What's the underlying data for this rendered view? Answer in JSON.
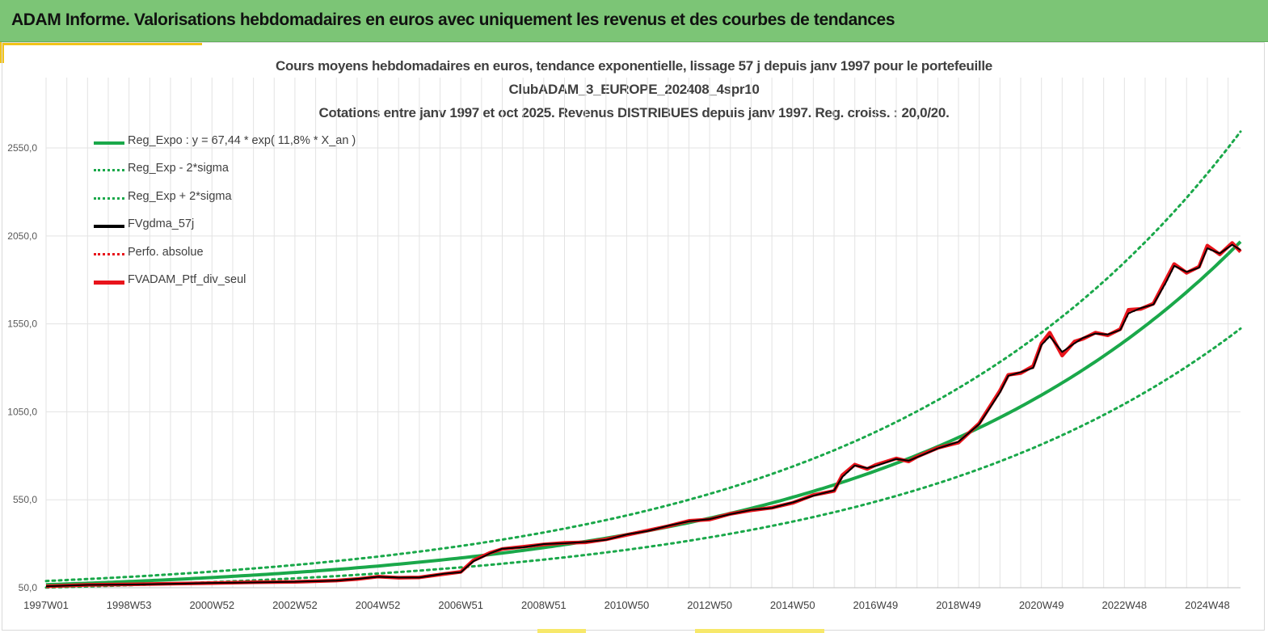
{
  "banner": {
    "title": "ADAM Informe. Valorisations hebdomadaires en euros avec uniquement les revenus et des courbes de tendances"
  },
  "colors": {
    "banner_bg": "#7cc576",
    "accent": "#f2c318",
    "trend": "#1aa84a",
    "trend_band": "#1aa84a",
    "fvgdma": "#000000",
    "perfo": "#e8141b",
    "portfolio": "#e8141b",
    "grid": "#e3e3e3"
  },
  "chart_data": {
    "type": "line",
    "title_lines": [
      "Cours moyens hebdomadaires  en euros, tendance exponentielle, lissage 57 j depuis janv 1997 pour le portefeuille",
      "ClubADAM_3_EUROPE_202408_4spr10",
      "Cotations  entre janv 1997 et oct 2025. Revenus DISTRIBUES depuis janv 1997. Reg. croiss. : 20,0/20."
    ],
    "xlabel": "",
    "ylabel": "",
    "ylim": [
      50,
      2950
    ],
    "xlim": [
      1997.0,
      2025.8
    ],
    "yticks": [
      50,
      550,
      1050,
      1550,
      2050,
      2550
    ],
    "ytick_labels": [
      "50,0",
      "550,0",
      "1050,0",
      "1550,0",
      "2050,0",
      "2550,0"
    ],
    "xticks": [
      1997.0,
      1999.0,
      2001.0,
      2003.0,
      2005.0,
      2007.0,
      2009.0,
      2011.0,
      2013.0,
      2015.0,
      2017.0,
      2019.0,
      2021.0,
      2023.0,
      2025.0
    ],
    "xtick_labels": [
      "1997W01",
      "1998W53",
      "2000W52",
      "2002W52",
      "2004W52",
      "2006W51",
      "2008W51",
      "2010W50",
      "2012W50",
      "2014W50",
      "2016W49",
      "2018W49",
      "2020W49",
      "2022W48",
      "2024W48"
    ],
    "grid": true,
    "legend_position": "top-left",
    "trend_model": {
      "a": 67.44,
      "growth": 0.118,
      "band_low_factor": 0.755,
      "band_high_factor": 1.31
    },
    "series": [
      {
        "name": "Reg_Expo : y = 67,44 * exp( 11,8% *  X_an )",
        "style": "solid-thick",
        "color_key": "trend",
        "x": [
          1997,
          1999,
          2001,
          2003,
          2005,
          2007,
          2009,
          2011,
          2013,
          2015,
          2017,
          2019,
          2021,
          2023,
          2025,
          2025.8
        ],
        "values": [
          67,
          85,
          108,
          137,
          173,
          219,
          278,
          353,
          447,
          567,
          719,
          912,
          1157,
          1467,
          1860,
          2050
        ]
      },
      {
        "name": "Reg_Exp - 2*sigma",
        "style": "dotted",
        "color_key": "trend_band",
        "x": [
          1997,
          1999,
          2001,
          2003,
          2005,
          2007,
          2009,
          2011,
          2013,
          2015,
          2017,
          2019,
          2021,
          2023,
          2025,
          2025.8
        ],
        "values": [
          51,
          64,
          82,
          103,
          131,
          165,
          210,
          266,
          338,
          428,
          543,
          689,
          873,
          1108,
          1405,
          1548
        ]
      },
      {
        "name": "Reg_Exp + 2*sigma",
        "style": "dotted",
        "color_key": "trend_band",
        "x": [
          1997,
          1999,
          2001,
          2003,
          2005,
          2007,
          2009,
          2011,
          2013,
          2015,
          2017,
          2019,
          2021,
          2023,
          2025,
          2025.8
        ],
        "values": [
          88,
          111,
          141,
          179,
          227,
          287,
          364,
          462,
          586,
          743,
          942,
          1195,
          1516,
          1922,
          2437,
          2686
        ]
      },
      {
        "name": "FVgdma_57j",
        "style": "solid",
        "color_key": "fvgdma",
        "x": [
          1997.0,
          1998.0,
          1999.0,
          2000.0,
          2001.0,
          2002.0,
          2003.0,
          2004.0,
          2004.5,
          2005.0,
          2005.5,
          2006.0,
          2006.6,
          2007.0,
          2007.3,
          2007.7,
          2008.0,
          2008.5,
          2009.0,
          2009.5,
          2010.0,
          2010.5,
          2011.0,
          2011.5,
          2012.0,
          2012.5,
          2013.0,
          2013.5,
          2014.0,
          2014.5,
          2015.0,
          2015.5,
          2016.0,
          2016.2,
          2016.5,
          2016.8,
          2017.0,
          2017.5,
          2017.8,
          2018.0,
          2018.5,
          2019.0,
          2019.5,
          2020.0,
          2020.2,
          2020.5,
          2020.8,
          2021.0,
          2021.2,
          2021.5,
          2021.8,
          2022.0,
          2022.3,
          2022.6,
          2022.9,
          2023.1,
          2023.4,
          2023.7,
          2024.0,
          2024.2,
          2024.5,
          2024.8,
          2025.0,
          2025.3,
          2025.6,
          2025.8
        ],
        "values": [
          58,
          66,
          68,
          72,
          77,
          80,
          84,
          90,
          100,
          112,
          108,
          108,
          130,
          138,
          200,
          245,
          272,
          280,
          298,
          303,
          310,
          322,
          353,
          372,
          402,
          428,
          440,
          468,
          492,
          503,
          535,
          573,
          603,
          680,
          745,
          730,
          742,
          782,
          772,
          792,
          842,
          880,
          980,
          1160,
          1255,
          1275,
          1300,
          1430,
          1480,
          1390,
          1440,
          1470,
          1495,
          1490,
          1515,
          1610,
          1640,
          1660,
          1785,
          1880,
          1845,
          1870,
          1980,
          1950,
          2000,
          1970
        ]
      },
      {
        "name": "Perfo. absolue",
        "style": "dotted",
        "color_key": "perfo",
        "x": [
          1997.0,
          1998.0,
          1999.0,
          2000.0,
          2001.0,
          2002.0,
          2003.0,
          2004.0,
          2004.5,
          2005.0,
          2005.5,
          2006.0,
          2006.6,
          2007.0,
          2007.3,
          2007.7,
          2008.0,
          2008.5,
          2009.0,
          2009.5,
          2010.0,
          2010.5,
          2011.0,
          2011.5,
          2012.0,
          2012.5,
          2013.0,
          2013.5,
          2014.0,
          2014.5,
          2015.0,
          2015.5,
          2016.0,
          2016.2,
          2016.5,
          2016.8,
          2017.0,
          2017.5,
          2017.8,
          2018.0,
          2018.5,
          2019.0,
          2019.5,
          2020.0,
          2020.2,
          2020.5,
          2020.8,
          2021.0,
          2021.2,
          2021.5,
          2021.8,
          2022.0,
          2022.3,
          2022.6,
          2022.9,
          2023.1,
          2023.4,
          2023.7,
          2024.0,
          2024.2,
          2024.5,
          2024.8,
          2025.0,
          2025.3,
          2025.6,
          2025.8
        ],
        "values": [
          58,
          66,
          68,
          72,
          77,
          80,
          84,
          90,
          100,
          112,
          108,
          108,
          130,
          138,
          200,
          245,
          272,
          280,
          298,
          303,
          310,
          322,
          353,
          372,
          402,
          428,
          440,
          468,
          492,
          503,
          535,
          573,
          603,
          680,
          745,
          730,
          742,
          782,
          772,
          792,
          842,
          880,
          980,
          1160,
          1255,
          1275,
          1300,
          1430,
          1480,
          1390,
          1440,
          1470,
          1495,
          1490,
          1515,
          1610,
          1640,
          1660,
          1785,
          1880,
          1845,
          1870,
          1980,
          1950,
          2000,
          1970
        ]
      },
      {
        "name": "FVADAM_Ptf_div_seul",
        "style": "solid-thick",
        "color_key": "portfolio",
        "x": [
          1997.0,
          1998.0,
          1999.0,
          2000.0,
          2001.0,
          2002.0,
          2003.0,
          2004.0,
          2004.5,
          2005.0,
          2005.5,
          2006.0,
          2006.6,
          2007.0,
          2007.3,
          2007.7,
          2008.0,
          2008.5,
          2009.0,
          2009.5,
          2010.0,
          2010.5,
          2011.0,
          2011.5,
          2012.0,
          2012.5,
          2013.0,
          2013.5,
          2014.0,
          2014.5,
          2015.0,
          2015.5,
          2016.0,
          2016.2,
          2016.5,
          2016.8,
          2017.0,
          2017.5,
          2017.8,
          2018.0,
          2018.5,
          2019.0,
          2019.5,
          2020.0,
          2020.2,
          2020.5,
          2020.8,
          2021.0,
          2021.2,
          2021.5,
          2021.8,
          2022.0,
          2022.3,
          2022.6,
          2022.9,
          2023.1,
          2023.4,
          2023.7,
          2024.0,
          2024.2,
          2024.5,
          2024.8,
          2025.0,
          2025.3,
          2025.6,
          2025.8
        ],
        "values": [
          58,
          66,
          69,
          73,
          76,
          81,
          83,
          91,
          99,
          113,
          107,
          109,
          128,
          140,
          205,
          248,
          270,
          283,
          296,
          305,
          308,
          325,
          350,
          375,
          400,
          430,
          438,
          470,
          490,
          505,
          532,
          577,
          600,
          690,
          750,
          725,
          748,
          785,
          768,
          795,
          845,
          875,
          985,
          1170,
          1260,
          1270,
          1310,
          1440,
          1500,
          1370,
          1450,
          1465,
          1500,
          1485,
          1520,
          1630,
          1635,
          1665,
          1800,
          1890,
          1840,
          1875,
          1995,
          1945,
          2010,
          1960
        ]
      }
    ]
  }
}
